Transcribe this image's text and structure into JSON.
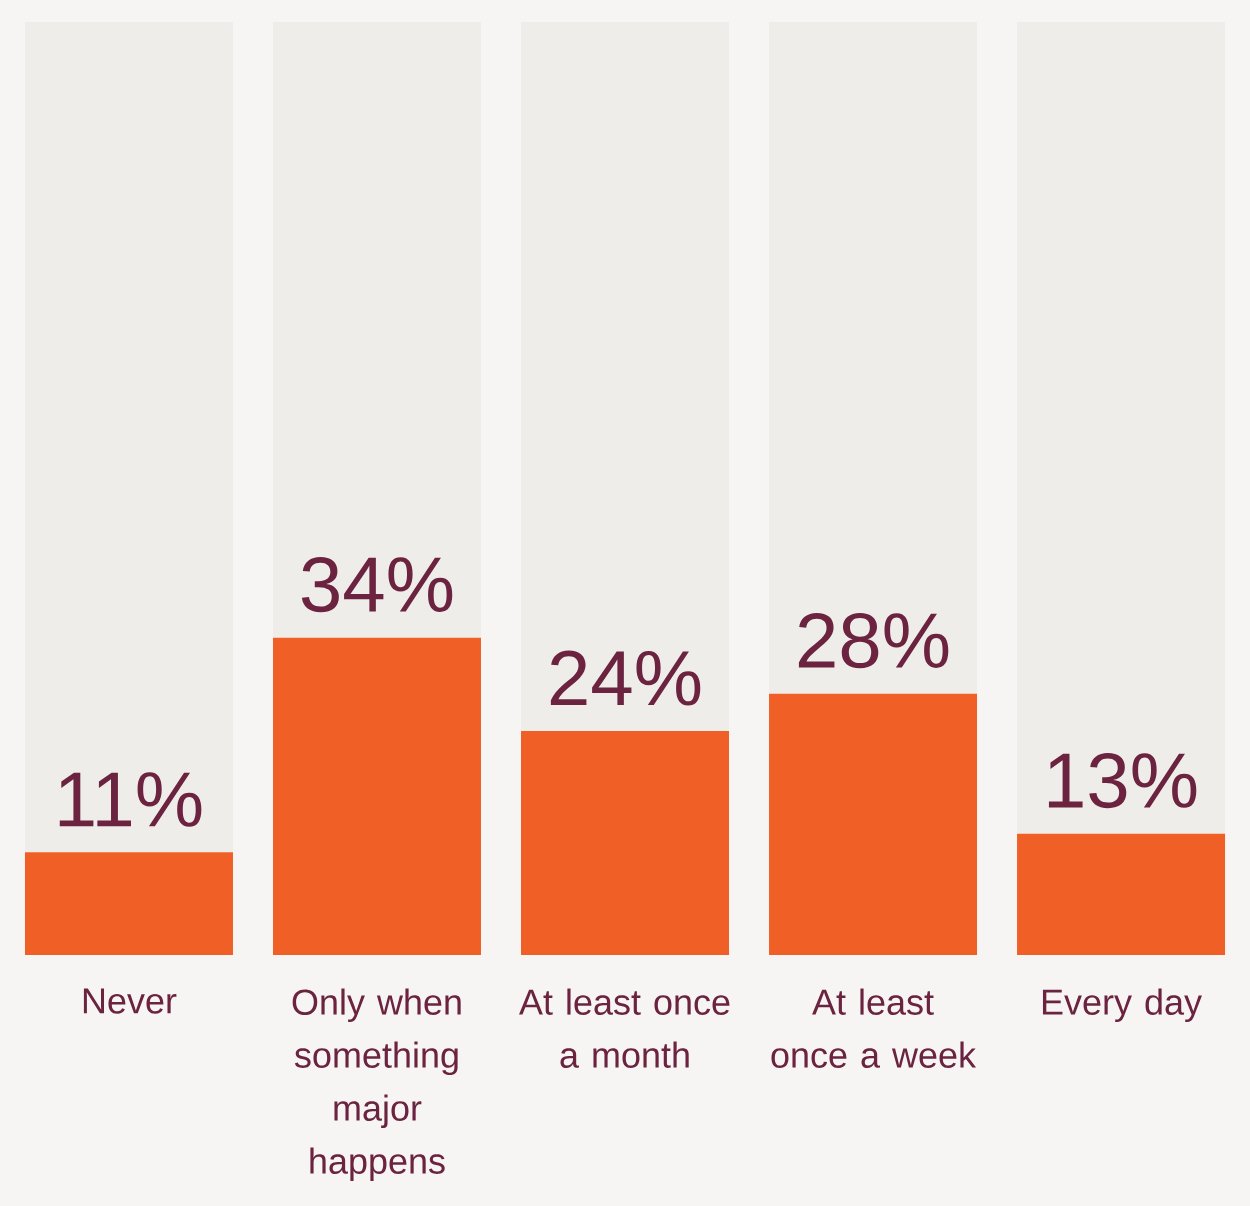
{
  "chart_data": {
    "type": "bar",
    "stacked": true,
    "categories": [
      "Never",
      "Only when something major happens",
      "At least once a month",
      "At least once a week",
      "Every day"
    ],
    "ylim": [
      0,
      100
    ],
    "series": [
      {
        "color": "#f06026",
        "values": [
          11,
          34,
          24,
          28,
          13
        ],
        "value_labels": [
          "11%",
          "34%",
          "24%",
          "28%",
          "13%"
        ]
      },
      {
        "color": "#efede9",
        "values": [
          89,
          66,
          76,
          72,
          87
        ]
      }
    ]
  }
}
